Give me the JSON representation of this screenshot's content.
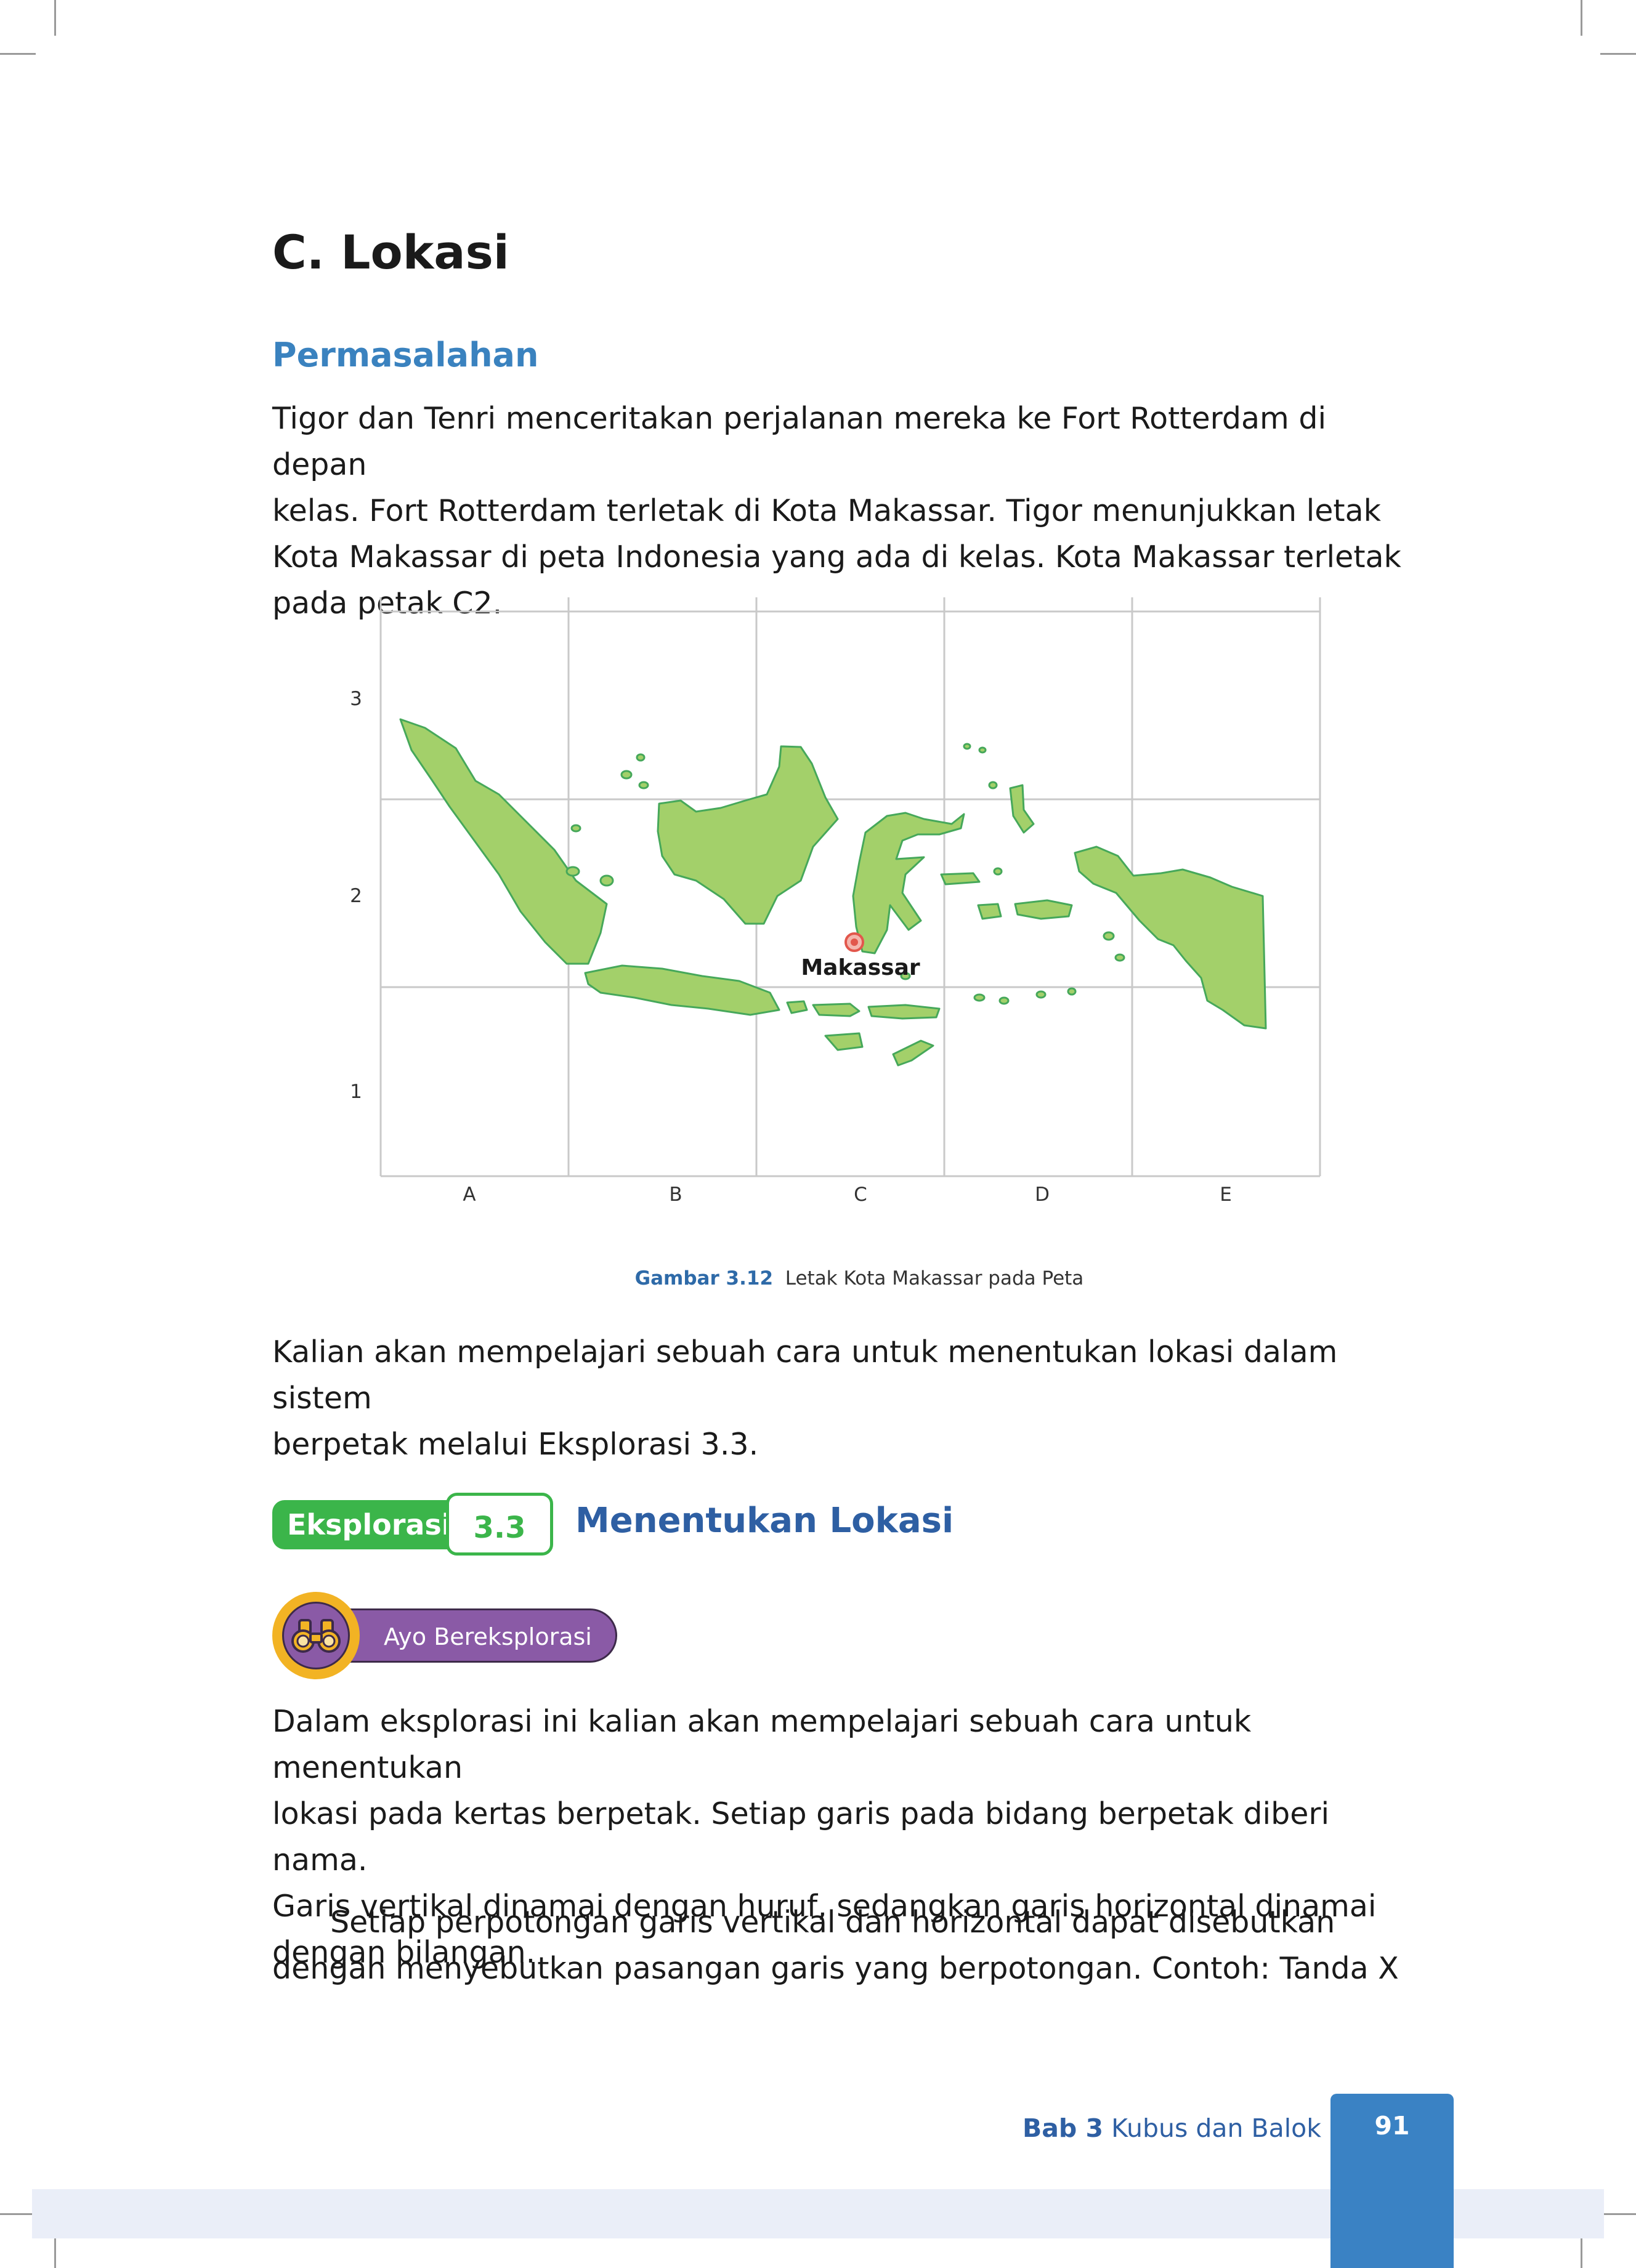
{
  "section": {
    "title": "C.  Lokasi"
  },
  "problem": {
    "heading": "Permasalahan",
    "lines": [
      "Tigor dan Tenri menceritakan perjalanan mereka ke Fort Rotterdam di depan",
      "kelas. Fort Rotterdam terletak di Kota Makassar. Tigor menunjukkan letak",
      "Kota Makassar di peta Indonesia yang ada di kelas. Kota Makassar terletak",
      "pada petak C2."
    ]
  },
  "map": {
    "col_labels": [
      "A",
      "B",
      "C",
      "D",
      "E"
    ],
    "row_labels": [
      "3",
      "2",
      "1"
    ],
    "marker_label": "Makassar",
    "land_color": "#a3d06a",
    "land_stroke": "#46a85a",
    "marker_color": "#e2574c"
  },
  "figure_caption": {
    "number": "Gambar 3.12",
    "text": "Letak Kota Makassar pada Peta"
  },
  "intro": {
    "lines": [
      "Kalian akan mempelajari sebuah cara untuk menentukan lokasi dalam sistem",
      "berpetak melalui Eksplorasi 3.3."
    ]
  },
  "exploration": {
    "label": "Eksplorasi",
    "number": "3.3",
    "title": "Menentukan Lokasi"
  },
  "ayo": {
    "label": "Ayo Bereksplorasi",
    "icon": "binoculars-icon"
  },
  "body": {
    "p1": [
      "Dalam eksplorasi ini kalian akan mempelajari sebuah cara untuk menentukan",
      "lokasi pada kertas berpetak. Setiap garis pada bidang berpetak diberi nama.",
      "Garis vertikal dinamai dengan huruf, sedangkan garis horizontal dinamai",
      "dengan bilangan."
    ],
    "p2": [
      "Setiap perpotongan garis vertikal dan horizontal dapat disebutkan",
      "dengan menyebutkan pasangan garis yang berpotongan. Contoh: Tanda X"
    ]
  },
  "footer": {
    "chapter": "Bab 3",
    "chapter_title": "Kubus dan Balok",
    "page": "91"
  }
}
